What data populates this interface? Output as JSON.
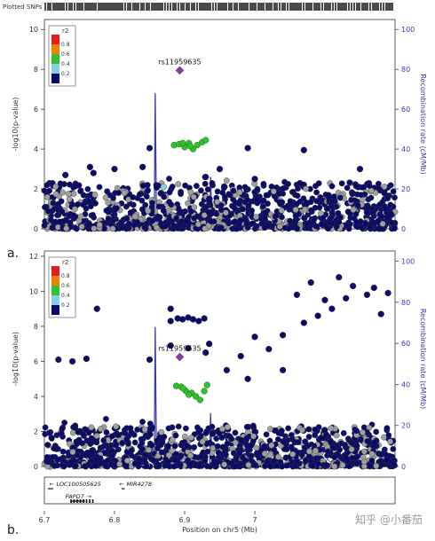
{
  "header": {
    "plotted_snps_label": "Plotted SNPs"
  },
  "panel_labels": {
    "a": "a.",
    "b": "b."
  },
  "colors": {
    "recomb_line": "#3a3aa8",
    "axis_right": "#3a3aa8",
    "lead_snp": "#8e3aa8",
    "r2_high": "#e02020",
    "r2_08": "#f08000",
    "r2_06": "#30c030",
    "r2_04": "#87ceeb",
    "r2_low": "#0a0a6b",
    "no_ld": "#a0a0a0"
  },
  "watermark": "知乎 @小番茄",
  "chart_data": [
    {
      "type": "scatter",
      "panel": "a",
      "ylabel": "-log10(p-value)",
      "y2label": "Recombination rate (cM/Mb)",
      "xlabel": "",
      "xlim": [
        6.7,
        7.2
      ],
      "ylim": [
        0,
        10.5
      ],
      "y_ticks": [
        "0",
        "2",
        "4",
        "6",
        "8",
        "10"
      ],
      "y2_ticks": [
        "0",
        "20",
        "40",
        "60",
        "80",
        "100"
      ],
      "legend_title": "r2",
      "legend_labels": [
        "0.8",
        "0.6",
        "0.4",
        "0.2"
      ],
      "lead_snp": {
        "name": "rs11959635",
        "x": 6.893,
        "y": 7.95
      },
      "green_cluster": [
        [
          6.885,
          4.2
        ],
        [
          6.892,
          4.25
        ],
        [
          6.9,
          4.1
        ],
        [
          6.906,
          4.3
        ],
        [
          6.912,
          4.0
        ],
        [
          6.918,
          4.2
        ],
        [
          6.925,
          4.35
        ],
        [
          6.93,
          4.45
        ],
        [
          6.897,
          4.3
        ],
        [
          6.908,
          4.15
        ]
      ],
      "light_blue": [
        [
          6.87,
          2.1
        ]
      ],
      "highlights": [
        [
          6.85,
          4.05
        ],
        [
          6.99,
          4.05
        ],
        [
          7.07,
          3.95
        ],
        [
          6.765,
          3.1
        ],
        [
          6.8,
          3.0
        ],
        [
          6.84,
          3.1
        ],
        [
          6.95,
          3.0
        ],
        [
          7.15,
          3.0
        ],
        [
          6.73,
          2.7
        ],
        [
          6.77,
          2.8
        ],
        [
          6.93,
          2.6
        ],
        [
          7.0,
          2.5
        ]
      ],
      "recomb_spikes": [
        [
          6.858,
          68
        ],
        [
          6.937,
          26
        ]
      ],
      "seed": 11
    },
    {
      "type": "scatter",
      "panel": "b",
      "ylabel": "-log10(p-value)",
      "y2label": "Recombination rate (cM/Mb)",
      "xlabel": "Position on chr5 (Mb)",
      "xlim": [
        6.7,
        7.2
      ],
      "ylim": [
        0,
        12.3
      ],
      "x_ticks": [
        "6.7",
        "6.8",
        "6.9",
        "7"
      ],
      "y_ticks": [
        "0",
        "2",
        "4",
        "6",
        "8",
        "10",
        "12"
      ],
      "y2_ticks": [
        "0",
        "20",
        "40",
        "60",
        "80",
        "100"
      ],
      "legend_title": "r2",
      "legend_labels": [
        "0.8",
        "0.6",
        "0.4",
        "0.2"
      ],
      "lead_snp": {
        "name": "rs11959635",
        "x": 6.893,
        "y": 6.25
      },
      "green_cluster": [
        [
          6.888,
          4.6
        ],
        [
          6.895,
          4.55
        ],
        [
          6.902,
          4.3
        ],
        [
          6.91,
          4.2
        ],
        [
          6.916,
          4.0
        ],
        [
          6.922,
          3.8
        ],
        [
          6.928,
          4.3
        ],
        [
          6.932,
          4.65
        ],
        [
          6.898,
          4.45
        ],
        [
          6.906,
          4.1
        ]
      ],
      "light_blue": [],
      "highlights": [
        [
          6.775,
          9.0
        ],
        [
          6.88,
          8.3
        ],
        [
          6.89,
          8.45
        ],
        [
          6.897,
          8.4
        ],
        [
          6.905,
          8.5
        ],
        [
          6.912,
          8.4
        ],
        [
          6.92,
          8.3
        ],
        [
          6.928,
          8.45
        ],
        [
          6.88,
          9.0
        ],
        [
          6.72,
          6.1
        ],
        [
          6.74,
          6.0
        ],
        [
          6.76,
          6.15
        ],
        [
          6.85,
          6.1
        ],
        [
          6.88,
          6.9
        ],
        [
          6.905,
          6.75
        ],
        [
          6.93,
          6.5
        ],
        [
          6.935,
          7.0
        ],
        [
          6.96,
          5.5
        ],
        [
          6.98,
          6.3
        ],
        [
          7.0,
          7.4
        ],
        [
          7.04,
          7.5
        ],
        [
          7.06,
          9.8
        ],
        [
          7.08,
          10.5
        ],
        [
          7.12,
          10.8
        ],
        [
          7.14,
          10.3
        ],
        [
          7.17,
          10.2
        ],
        [
          7.19,
          9.9
        ],
        [
          7.13,
          9.6
        ],
        [
          7.16,
          9.8
        ],
        [
          7.1,
          9.5
        ],
        [
          7.18,
          8.7
        ],
        [
          7.11,
          9.0
        ],
        [
          7.09,
          8.6
        ],
        [
          7.07,
          8.2
        ],
        [
          7.02,
          6.7
        ],
        [
          7.04,
          5.5
        ],
        [
          6.99,
          5.0
        ]
      ],
      "recomb_spikes": [
        [
          6.858,
          68
        ],
        [
          6.937,
          26
        ]
      ],
      "seed": 29
    }
  ],
  "gene_track": {
    "genes": [
      {
        "name": "LOC100505625",
        "arrow": "←",
        "x": 6.712,
        "y_row": 0,
        "line_start": 6.705,
        "line_end": 6.71
      },
      {
        "name": "MIR4278",
        "arrow": "←",
        "x": 6.812,
        "y_row": 0,
        "line_start": 6.81,
        "line_end": 6.812
      },
      {
        "name": "PAPD7",
        "arrow": "→",
        "x": 6.735,
        "y_row": 1,
        "line_start": 6.737,
        "line_end": 6.758
      }
    ]
  }
}
